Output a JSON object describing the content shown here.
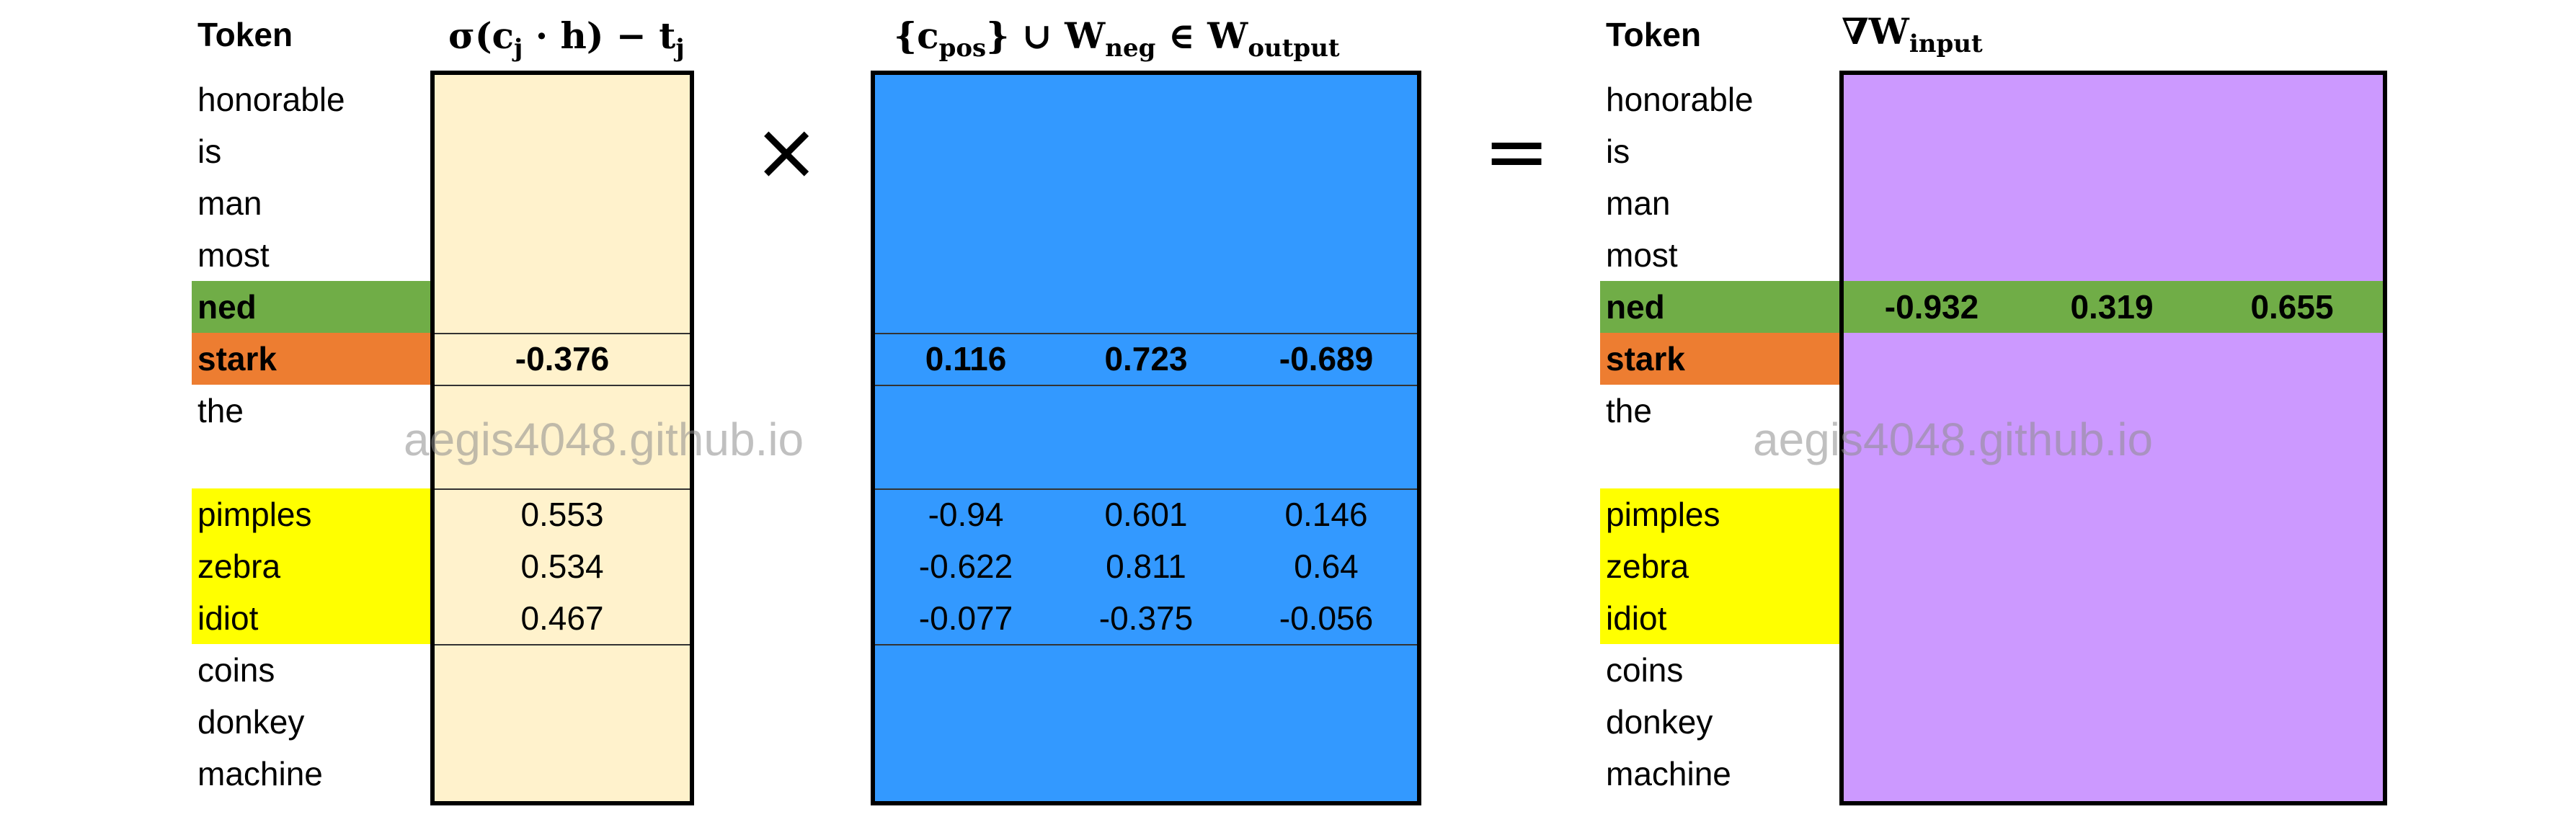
{
  "left_table": {
    "header": "Token",
    "tokens": [
      "honorable",
      "is",
      "man",
      "most",
      "ned",
      "stark",
      "the",
      "",
      "pimples",
      "zebra",
      "idiot",
      "coins",
      "donkey",
      "machine"
    ]
  },
  "right_table": {
    "header": "Token",
    "tokens": [
      "honorable",
      "is",
      "man",
      "most",
      "ned",
      "stark",
      "the",
      "",
      "pimples",
      "zebra",
      "idiot",
      "coins",
      "donkey",
      "machine"
    ]
  },
  "headers": {
    "sigma": "σ(cⱼ · h) − tⱼ",
    "output_set": "{c_pos} ∪ W_neg ∈ W_output",
    "grad": "∇W_input"
  },
  "operators": {
    "times": "×",
    "equals": "="
  },
  "highlight_colors": {
    "ned": "#70ad47",
    "stark": "#ed7d31",
    "negative": "#ffff00"
  },
  "matrix_colors": {
    "sigma": "#fff2cc",
    "output": "#3399ff",
    "grad": "#cc99ff"
  },
  "sigma_column": {
    "stark": "-0.376",
    "pimples": "0.553",
    "zebra": "0.534",
    "idiot": "0.467"
  },
  "output_matrix": {
    "stark": [
      "0.116",
      "0.723",
      "-0.689"
    ],
    "pimples": [
      "-0.94",
      "0.601",
      "0.146"
    ],
    "zebra": [
      "-0.622",
      "0.811",
      "0.64"
    ],
    "idiot": [
      "-0.077",
      "-0.375",
      "-0.056"
    ]
  },
  "grad_matrix": {
    "ned": [
      "-0.932",
      "0.319",
      "0.655"
    ]
  },
  "watermark": "aegis4048.github.io"
}
